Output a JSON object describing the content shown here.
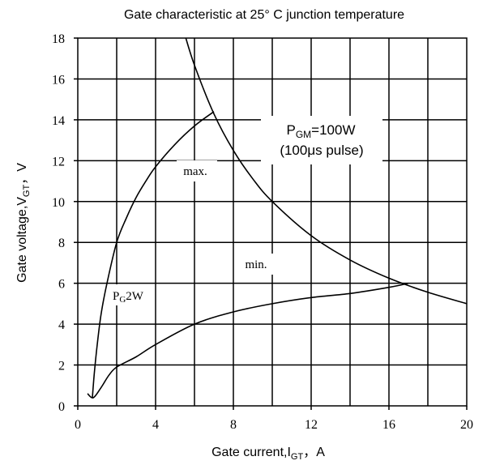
{
  "chart_data": {
    "type": "line",
    "title": "Gate characteristic at 25° C junction temperature",
    "xlabel": {
      "main": "Gate current,I",
      "sub": "GT",
      "tail": "，A"
    },
    "ylabel": {
      "main": "Gate voltage,V",
      "sub": "GT",
      "tail": "，V"
    },
    "xlim": [
      0,
      20
    ],
    "ylim": [
      0,
      18
    ],
    "xticks": [
      0,
      4,
      8,
      12,
      16,
      20
    ],
    "yticks": [
      0,
      2,
      4,
      6,
      8,
      10,
      12,
      14,
      16,
      18
    ],
    "grid": true,
    "grid_x_step": 2,
    "grid_y_step": 2,
    "series": [
      {
        "name": "max.",
        "x": [
          0.75,
          0.85,
          1.0,
          1.2,
          1.5,
          2.0,
          2.5,
          3.0,
          3.5,
          4.0,
          5.0,
          6.0,
          7.0
        ],
        "y": [
          0.4,
          1.6,
          3.0,
          4.5,
          6.0,
          8.0,
          9.2,
          10.2,
          11.0,
          11.7,
          12.8,
          13.7,
          14.4
        ]
      },
      {
        "name": "min.",
        "x": [
          0.5,
          0.8,
          1.2,
          1.6,
          2.0,
          3.0,
          4.0,
          6.0,
          8.0,
          10.0,
          12.0,
          14.0,
          16.0,
          17.0
        ],
        "y": [
          0.6,
          0.4,
          0.9,
          1.5,
          1.9,
          2.4,
          3.0,
          4.0,
          4.6,
          5.0,
          5.3,
          5.5,
          5.8,
          6.0
        ]
      },
      {
        "name": "P_GM=100W",
        "x": [
          5.5,
          6.0,
          7.0,
          8.0,
          9.0,
          10.0,
          12.0,
          14.0,
          16.0,
          18.0,
          20.0
        ],
        "y": [
          18.18,
          16.67,
          14.29,
          12.5,
          11.11,
          10.0,
          8.33,
          7.14,
          6.25,
          5.56,
          5.0
        ]
      }
    ],
    "annotations": [
      {
        "text": "max.",
        "x": 5.3,
        "y": 11.5
      },
      {
        "text": "min.",
        "x": 9.3,
        "y": 7.0
      },
      {
        "main": "P",
        "sub": "G",
        "tail": "2W",
        "x": 1.8,
        "y": 5.6
      },
      {
        "main": "P",
        "sub": "GM",
        "tail": "=100W",
        "x": 12.5,
        "y": 13.4
      },
      {
        "text": "(100μs  pulse)",
        "x": 12.5,
        "y": 12.3
      }
    ]
  }
}
